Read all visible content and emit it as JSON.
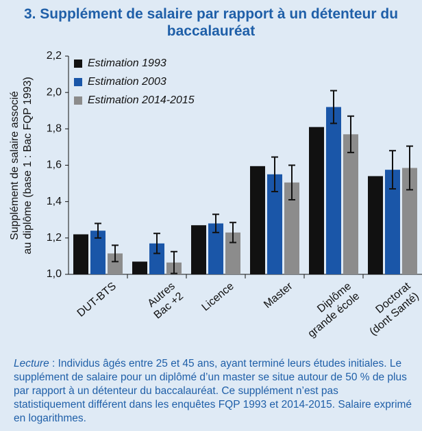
{
  "chart_data": {
    "type": "bar",
    "title": "3. Supplément de salaire par rapport à un détenteur du baccalauréat",
    "y_label": [
      "Supplément de salaire associé",
      "au diplôme (base 1 : Bac FQP 1993)"
    ],
    "categories": [
      "DUT-BTS",
      "Autres\nBac +2",
      "Licence",
      "Master",
      "Diplôme\ngrande école",
      "Doctorat\n(dont Santé)"
    ],
    "series": [
      {
        "name": "Estimation 1993",
        "color": "#111111",
        "values": [
          1.22,
          1.07,
          1.27,
          1.595,
          1.81,
          1.54
        ]
      },
      {
        "name": "Estimation 2003",
        "color": "#1a56a8",
        "values": [
          1.24,
          1.17,
          1.28,
          1.55,
          1.92,
          1.575
        ],
        "errors": [
          0.04,
          0.055,
          0.05,
          0.095,
          0.09,
          0.105
        ]
      },
      {
        "name": "Estimation 2014-2015",
        "color": "#8c8c8c",
        "values": [
          1.115,
          1.065,
          1.23,
          1.505,
          1.77,
          1.585
        ],
        "errors": [
          0.045,
          0.06,
          0.055,
          0.095,
          0.1,
          0.12
        ]
      }
    ],
    "ylim": [
      1.0,
      2.2
    ],
    "yticks": [
      {
        "value": 1.0,
        "label": "1,0"
      },
      {
        "value": 1.2,
        "label": "1,2"
      },
      {
        "value": 1.4,
        "label": "1,4"
      },
      {
        "value": 1.6,
        "label": "1,6"
      },
      {
        "value": 1.8,
        "label": "1,8"
      },
      {
        "value": 2.0,
        "label": "2,0"
      },
      {
        "value": 2.2,
        "label": "2,2"
      }
    ],
    "legend": "upper left",
    "note": {
      "label": "Lecture",
      "text": " : Individus âgés entre 25 et 45 ans, ayant terminé leurs études initiales. Le supplément de salaire pour un diplômé d’un master se situe autour de 50 % de plus par rapport à un détenteur du baccalauréat. Ce supplément n’est pas statistiquement différent dans les enquêtes FQP 1993 et 2014-2015. Salaire exprimé en logarithmes."
    }
  }
}
